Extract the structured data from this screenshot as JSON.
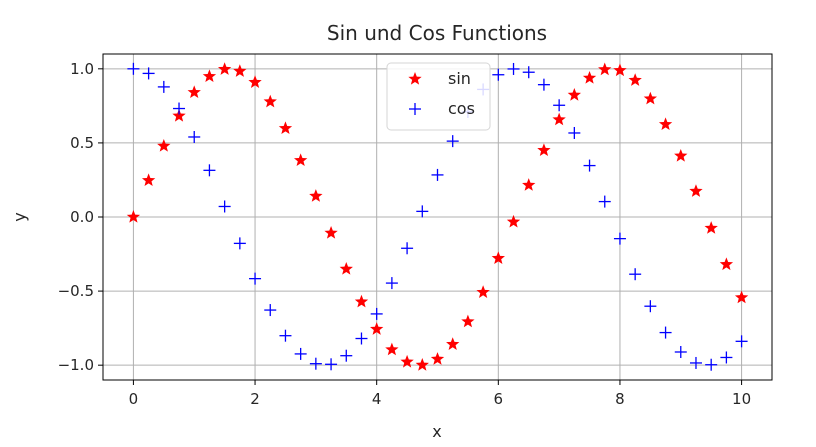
{
  "chart_data": {
    "type": "scatter",
    "title": "Sin und Cos Functions",
    "xlabel": "x",
    "ylabel": "y",
    "xlim": [
      -0.5,
      10.5
    ],
    "ylim": [
      -1.1,
      1.1
    ],
    "xticks": [
      0,
      2,
      4,
      6,
      8,
      10
    ],
    "xtick_labels": [
      "0",
      "2",
      "4",
      "6",
      "8",
      "10"
    ],
    "yticks": [
      -1.0,
      -0.5,
      0.0,
      0.5,
      1.0
    ],
    "ytick_labels": [
      "−1.0",
      "−0.5",
      "0.0",
      "0.5",
      "1.0"
    ],
    "grid": true,
    "legend_position": "top-center",
    "x": [
      0,
      0.25,
      0.5,
      0.75,
      1.0,
      1.25,
      1.5,
      1.75,
      2.0,
      2.25,
      2.5,
      2.75,
      3.0,
      3.25,
      3.5,
      3.75,
      4.0,
      4.25,
      4.5,
      4.75,
      5.0,
      5.25,
      5.5,
      5.75,
      6.0,
      6.25,
      6.5,
      6.75,
      7.0,
      7.25,
      7.5,
      7.75,
      8.0,
      8.25,
      8.5,
      8.75,
      9.0,
      9.25,
      9.5,
      9.75,
      10.0
    ],
    "series": [
      {
        "name": "sin",
        "marker": "star",
        "color": "#ff0000",
        "values": [
          0.0,
          0.247,
          0.479,
          0.682,
          0.841,
          0.949,
          0.997,
          0.984,
          0.909,
          0.778,
          0.598,
          0.382,
          0.141,
          -0.108,
          -0.351,
          -0.572,
          -0.757,
          -0.895,
          -0.978,
          -0.999,
          -0.959,
          -0.859,
          -0.706,
          -0.508,
          -0.279,
          -0.033,
          0.215,
          0.45,
          0.657,
          0.823,
          0.938,
          0.995,
          0.989,
          0.923,
          0.798,
          0.625,
          0.412,
          0.174,
          -0.075,
          -0.32,
          -0.544
        ]
      },
      {
        "name": "cos",
        "marker": "plus",
        "color": "#0000ff",
        "values": [
          1.0,
          0.969,
          0.878,
          0.732,
          0.54,
          0.315,
          0.071,
          -0.178,
          -0.416,
          -0.628,
          -0.801,
          -0.924,
          -0.99,
          -0.994,
          -0.936,
          -0.82,
          -0.654,
          -0.446,
          -0.211,
          0.038,
          0.284,
          0.512,
          0.709,
          0.861,
          0.96,
          0.999,
          0.977,
          0.893,
          0.754,
          0.567,
          0.347,
          0.104,
          -0.146,
          -0.386,
          -0.602,
          -0.78,
          -0.911,
          -0.985,
          -0.997,
          -0.948,
          -0.839
        ]
      }
    ]
  }
}
